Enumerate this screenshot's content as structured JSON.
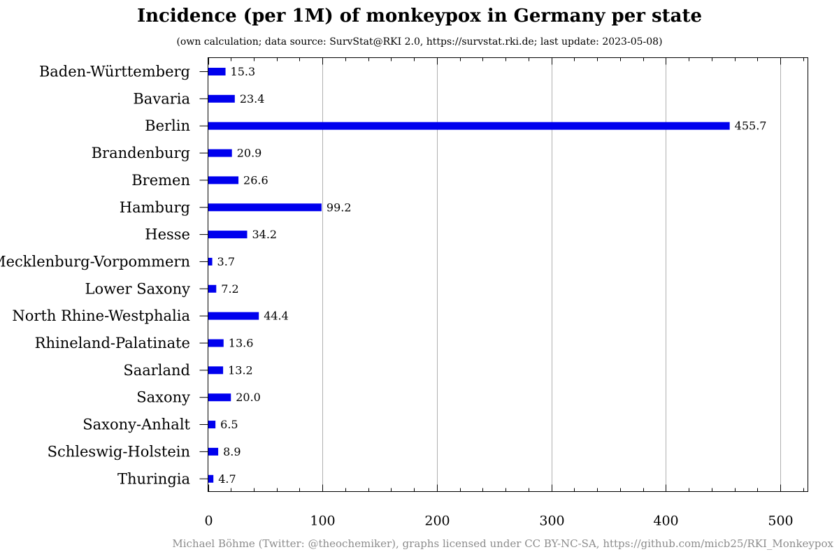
{
  "title": "Incidence (per 1M) of monkeypox in Germany per state",
  "subtitle": "(own calculation; data source: SurvStat@RKI 2.0, https://survstat.rki.de; last update: 2023-05-08)",
  "footer": "Michael Böhme (Twitter: @theochemiker), graphs licensed under CC BY-NC-SA, https://github.com/micb25/RKI_Monkeypox",
  "colors": {
    "bar": "#0000ee",
    "grid": "#b0b0b0",
    "axis": "#000000",
    "footer": "#8c8c8c"
  },
  "chart_data": {
    "type": "bar",
    "orientation": "horizontal",
    "title": "Incidence (per 1M) of monkeypox in Germany per state",
    "xlabel": "",
    "ylabel": "",
    "xlim": [
      0,
      524
    ],
    "xticks": [
      0,
      100,
      200,
      300,
      400,
      500
    ],
    "xtick_labels": [
      "0",
      "100",
      "200",
      "300",
      "400",
      "500"
    ],
    "minor_tick_step": 20,
    "grid": "vertical",
    "categories": [
      "Baden-Württemberg",
      "Bavaria",
      "Berlin",
      "Brandenburg",
      "Bremen",
      "Hamburg",
      "Hesse",
      "Mecklenburg-Vorpommern",
      "Lower Saxony",
      "North Rhine-Westphalia",
      "Rhineland-Palatinate",
      "Saarland",
      "Saxony",
      "Saxony-Anhalt",
      "Schleswig-Holstein",
      "Thuringia"
    ],
    "values": [
      15.3,
      23.4,
      455.7,
      20.9,
      26.6,
      99.2,
      34.2,
      3.7,
      7.2,
      44.4,
      13.6,
      13.2,
      20.0,
      6.5,
      8.9,
      4.7
    ],
    "value_labels": [
      "15.3",
      "23.4",
      "455.7",
      "20.9",
      "26.6",
      "99.2",
      "34.2",
      "3.7",
      "7.2",
      "44.4",
      "13.6",
      "13.2",
      "20.0",
      "6.5",
      "8.9",
      "4.7"
    ]
  }
}
